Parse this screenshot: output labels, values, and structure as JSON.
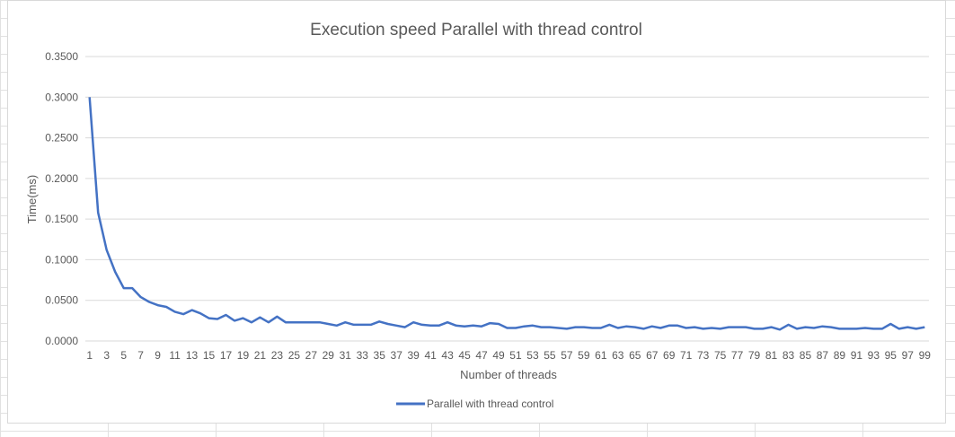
{
  "chart_data": {
    "type": "line",
    "title": "Execution speed Parallel with thread control",
    "xlabel": "Number of threads",
    "ylabel": "Time(ms)",
    "ylim": [
      0,
      0.35
    ],
    "yticks": [
      "0.0000",
      "0.0500",
      "0.1000",
      "0.1500",
      "0.2000",
      "0.2500",
      "0.3000",
      "0.3500"
    ],
    "x": [
      1,
      2,
      3,
      4,
      5,
      6,
      7,
      8,
      9,
      10,
      11,
      12,
      13,
      14,
      15,
      16,
      17,
      18,
      19,
      20,
      21,
      22,
      23,
      24,
      25,
      26,
      27,
      28,
      29,
      30,
      31,
      32,
      33,
      34,
      35,
      36,
      37,
      38,
      39,
      40,
      41,
      42,
      43,
      44,
      45,
      46,
      47,
      48,
      49,
      50,
      51,
      52,
      53,
      54,
      55,
      56,
      57,
      58,
      59,
      60,
      61,
      62,
      63,
      64,
      65,
      66,
      67,
      68,
      69,
      70,
      71,
      72,
      73,
      74,
      75,
      76,
      77,
      78,
      79,
      80,
      81,
      82,
      83,
      84,
      85,
      86,
      87,
      88,
      89,
      90,
      91,
      92,
      93,
      94,
      95,
      96,
      97,
      98,
      99
    ],
    "x_tick_labels": [
      "1",
      "3",
      "5",
      "7",
      "9",
      "11",
      "13",
      "15",
      "17",
      "19",
      "21",
      "23",
      "25",
      "27",
      "29",
      "31",
      "33",
      "35",
      "37",
      "39",
      "41",
      "43",
      "45",
      "47",
      "49",
      "51",
      "53",
      "55",
      "57",
      "59",
      "61",
      "63",
      "65",
      "67",
      "69",
      "71",
      "73",
      "75",
      "77",
      "79",
      "81",
      "83",
      "85",
      "87",
      "89",
      "91",
      "93",
      "95",
      "97",
      "99"
    ],
    "series": [
      {
        "name": "Parallel with thread control",
        "color": "#4472c4",
        "values": [
          0.3,
          0.158,
          0.112,
          0.085,
          0.065,
          0.065,
          0.054,
          0.048,
          0.044,
          0.042,
          0.036,
          0.033,
          0.038,
          0.034,
          0.028,
          0.027,
          0.032,
          0.025,
          0.028,
          0.023,
          0.029,
          0.023,
          0.03,
          0.023,
          0.023,
          0.023,
          0.023,
          0.023,
          0.021,
          0.019,
          0.023,
          0.02,
          0.02,
          0.02,
          0.024,
          0.021,
          0.019,
          0.017,
          0.023,
          0.02,
          0.019,
          0.019,
          0.023,
          0.019,
          0.018,
          0.019,
          0.018,
          0.022,
          0.021,
          0.016,
          0.016,
          0.018,
          0.019,
          0.017,
          0.017,
          0.016,
          0.015,
          0.017,
          0.017,
          0.016,
          0.016,
          0.02,
          0.016,
          0.018,
          0.017,
          0.015,
          0.018,
          0.016,
          0.019,
          0.019,
          0.016,
          0.017,
          0.015,
          0.016,
          0.015,
          0.017,
          0.017,
          0.017,
          0.015,
          0.015,
          0.017,
          0.014,
          0.02,
          0.015,
          0.017,
          0.016,
          0.018,
          0.017,
          0.015,
          0.015,
          0.015,
          0.016,
          0.015,
          0.015,
          0.021,
          0.015,
          0.017,
          0.015,
          0.017
        ]
      }
    ],
    "grid": true,
    "legend": "bottom"
  }
}
